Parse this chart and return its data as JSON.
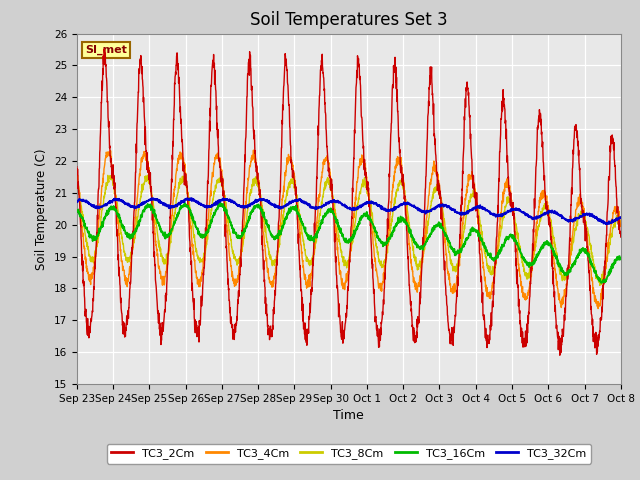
{
  "title": "Soil Temperatures Set 3",
  "xlabel": "Time",
  "ylabel": "Soil Temperature (C)",
  "ylim": [
    15.0,
    26.0
  ],
  "yticks": [
    15.0,
    16.0,
    17.0,
    18.0,
    19.0,
    20.0,
    21.0,
    22.0,
    23.0,
    24.0,
    25.0,
    26.0
  ],
  "xtick_labels": [
    "Sep 23",
    "Sep 24",
    "Sep 25",
    "Sep 26",
    "Sep 27",
    "Sep 28",
    "Sep 29",
    "Sep 30",
    "Oct 1",
    "Oct 2",
    "Oct 3",
    "Oct 4",
    "Oct 5",
    "Oct 6",
    "Oct 7",
    "Oct 8"
  ],
  "annotation_text": "SI_met",
  "annotation_bg": "#ffff99",
  "annotation_border": "#996600",
  "series_colors": {
    "TC3_2Cm": "#cc0000",
    "TC3_4Cm": "#ff8800",
    "TC3_8Cm": "#cccc00",
    "TC3_16Cm": "#00bb00",
    "TC3_32Cm": "#0000cc"
  },
  "fig_bg": "#d0d0d0",
  "plot_bg": "#e8e8e8",
  "grid_color": "#ffffff",
  "legend_entries": [
    "TC3_2Cm",
    "TC3_4Cm",
    "TC3_8Cm",
    "TC3_16Cm",
    "TC3_32Cm"
  ]
}
